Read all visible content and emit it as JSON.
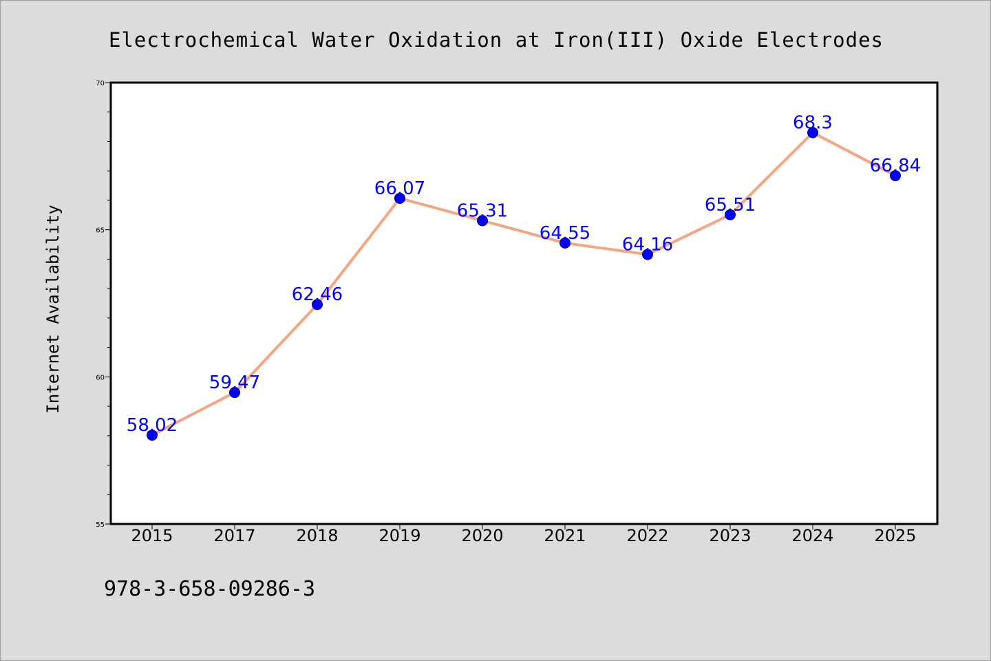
{
  "chart_data": {
    "type": "line",
    "title": "Electrochemical Water Oxidation at Iron(III) Oxide Electrodes",
    "xlabel": "",
    "ylabel": "Internet Availability",
    "categories": [
      "2015",
      "2017",
      "2018",
      "2019",
      "2020",
      "2021",
      "2022",
      "2023",
      "2024",
      "2025"
    ],
    "values": [
      58.02,
      59.47,
      62.46,
      66.07,
      65.31,
      64.55,
      64.16,
      65.51,
      68.3,
      66.84
    ],
    "data_labels": [
      "58.02",
      "59.47",
      "62.46",
      "66.07",
      "65.31",
      "64.55",
      "64.16",
      "65.51",
      "68.3",
      "66.84"
    ],
    "ylim": [
      55,
      70
    ],
    "yticks": [
      "55",
      "60",
      "65",
      "70"
    ],
    "y_minor_step": 1,
    "grid": false,
    "legend": "none",
    "line_color": "#f4a582",
    "marker_color": "#0000ff",
    "label_color": "#0000ff"
  },
  "footer": {
    "isbn": "978-3-658-09286-3"
  }
}
